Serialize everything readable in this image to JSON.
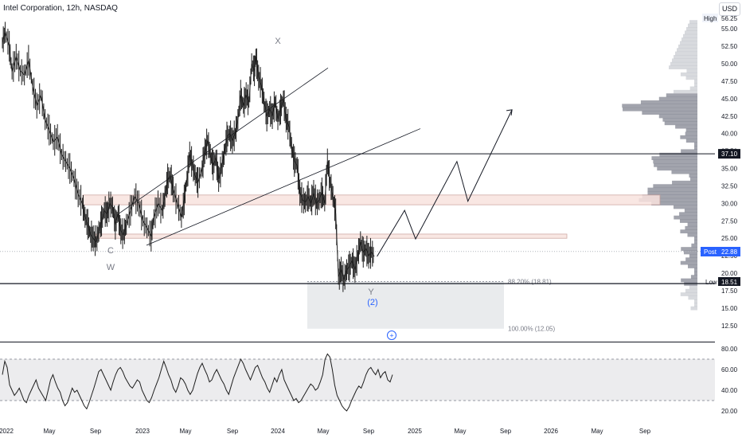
{
  "header": {
    "title": "Intel Corporation, 12h, NASDAQ",
    "currency": "USD"
  },
  "chart_data": [
    {
      "type": "line",
      "title": "Intel Corporation, 12h, NASDAQ",
      "ylim": [
        10.5,
        57.5
      ],
      "y_ticks": [
        "12.50",
        "15.00",
        "17.50",
        "20.00",
        "22.50",
        "25.00",
        "27.50",
        "30.00",
        "32.50",
        "35.00",
        "37.50",
        "40.00",
        "42.50",
        "45.00",
        "47.50",
        "50.00",
        "52.50",
        "55.00"
      ],
      "x_ticks": [
        "2022",
        "May",
        "Sep",
        "2023",
        "May",
        "Sep",
        "2024",
        "May",
        "Sep",
        "2025",
        "May",
        "Sep",
        "2026",
        "May",
        "Sep"
      ],
      "series": [
        {
          "values": [
            [
              0,
              53.0
            ],
            [
              0.02,
              54.5
            ],
            [
              0.05,
              52.5
            ],
            [
              0.07,
              48.9
            ],
            [
              0.1,
              51.0
            ],
            [
              0.13,
              49.0
            ],
            [
              0.16,
              48.4
            ],
            [
              0.19,
              50.5
            ],
            [
              0.22,
              46.7
            ],
            [
              0.25,
              44.0
            ],
            [
              0.28,
              45.5
            ],
            [
              0.31,
              42.0
            ],
            [
              0.34,
              40.5
            ],
            [
              0.37,
              38.8
            ],
            [
              0.4,
              39.5
            ],
            [
              0.43,
              37.0
            ],
            [
              0.46,
              36.0
            ],
            [
              0.49,
              35.0
            ],
            [
              0.52,
              33.5
            ],
            [
              0.55,
              31.3
            ],
            [
              0.58,
              30.0
            ],
            [
              0.6,
              28.0
            ],
            [
              0.62,
              27.0
            ],
            [
              0.64,
              25.5
            ],
            [
              0.66,
              25.0
            ],
            [
              0.68,
              24.5
            ],
            [
              0.7,
              26.0
            ],
            [
              0.72,
              27.5
            ],
            [
              0.74,
              29.0
            ],
            [
              0.76,
              28.5
            ],
            [
              0.78,
              30.0
            ],
            [
              0.8,
              29.5
            ],
            [
              0.82,
              27.0
            ],
            [
              0.84,
              28.5
            ],
            [
              0.86,
              26.0
            ],
            [
              0.88,
              25.5
            ],
            [
              0.9,
              27.0
            ],
            [
              0.93,
              29.0
            ],
            [
              0.96,
              31.0
            ],
            [
              0.99,
              30.0
            ],
            [
              1.02,
              27.5
            ],
            [
              1.05,
              26.5
            ],
            [
              1.08,
              25.3
            ],
            [
              1.1,
              28.0
            ],
            [
              1.13,
              30.0
            ],
            [
              1.16,
              29.0
            ],
            [
              1.18,
              31.0
            ],
            [
              1.2,
              33.5
            ],
            [
              1.22,
              34.0
            ],
            [
              1.24,
              32.0
            ],
            [
              1.27,
              30.0
            ],
            [
              1.3,
              28.0
            ],
            [
              1.32,
              30.5
            ],
            [
              1.34,
              33.5
            ],
            [
              1.36,
              37.0
            ],
            [
              1.38,
              35.5
            ],
            [
              1.4,
              34.0
            ],
            [
              1.42,
              33.0
            ],
            [
              1.45,
              35.0
            ],
            [
              1.47,
              37.5
            ],
            [
              1.49,
              39.0
            ],
            [
              1.51,
              37.0
            ],
            [
              1.53,
              35.5
            ],
            [
              1.55,
              36.5
            ],
            [
              1.57,
              33.5
            ],
            [
              1.59,
              35.0
            ],
            [
              1.61,
              37.0
            ],
            [
              1.63,
              39.5
            ],
            [
              1.65,
              40.0
            ],
            [
              1.67,
              39.0
            ],
            [
              1.69,
              40.0
            ],
            [
              1.71,
              42.0
            ],
            [
              1.73,
              45.5
            ],
            [
              1.75,
              44.0
            ],
            [
              1.77,
              45.5
            ],
            [
              1.79,
              44.5
            ],
            [
              1.81,
              50.0
            ],
            [
              1.83,
              49.0
            ],
            [
              1.84,
              51.0
            ],
            [
              1.86,
              48.0
            ],
            [
              1.88,
              47.0
            ],
            [
              1.9,
              44.5
            ],
            [
              1.92,
              42.5
            ],
            [
              1.94,
              43.5
            ],
            [
              1.96,
              42.5
            ],
            [
              1.98,
              44.5
            ],
            [
              2.0,
              42.0
            ],
            [
              2.02,
              43.5
            ],
            [
              2.04,
              45.0
            ],
            [
              2.06,
              42.0
            ],
            [
              2.08,
              41.0
            ],
            [
              2.1,
              38.0
            ],
            [
              2.12,
              36.0
            ],
            [
              2.14,
              35.5
            ],
            [
              2.16,
              31.5
            ],
            [
              2.18,
              30.5
            ],
            [
              2.2,
              30.2
            ],
            [
              2.22,
              31.0
            ],
            [
              2.24,
              30.0
            ],
            [
              2.26,
              31.5
            ],
            [
              2.28,
              30.0
            ],
            [
              2.3,
              30.5
            ],
            [
              2.32,
              31.5
            ],
            [
              2.34,
              30.0
            ],
            [
              2.36,
              36.0
            ],
            [
              2.38,
              33.0
            ],
            [
              2.4,
              31.0
            ],
            [
              2.42,
              28.5
            ],
            [
              2.44,
              19.5
            ],
            [
              2.46,
              20.5
            ],
            [
              2.48,
              19.0
            ],
            [
              2.5,
              20.5
            ],
            [
              2.52,
              21.0
            ],
            [
              2.54,
              21.8
            ],
            [
              2.56,
              20.5
            ],
            [
              2.58,
              22.5
            ],
            [
              2.6,
              24.5
            ],
            [
              2.62,
              23.0
            ],
            [
              2.64,
              23.5
            ],
            [
              2.66,
              22.5
            ],
            [
              2.68,
              23.0
            ],
            [
              2.7,
              22.4
            ]
          ]
        }
      ],
      "current_price": "22.88",
      "current_label": "Post",
      "high": {
        "label": "High",
        "value": "56.25"
      },
      "low": {
        "label": "Low",
        "value": "18.51"
      },
      "resistance": "37.10",
      "wave_labels": [
        "X",
        "C",
        "W",
        "Y",
        "(2)"
      ],
      "fib_levels": [
        {
          "label": "88.20% (18.81)",
          "value": 18.81
        },
        {
          "label": "100.00% (12.05)",
          "value": 12.05
        }
      ],
      "zones": [
        [
          29.8,
          31.2
        ],
        [
          25.0,
          25.6
        ]
      ],
      "projection": [
        [
          2.72,
          22.4
        ],
        [
          2.92,
          29.0
        ],
        [
          3.0,
          24.9
        ],
        [
          3.3,
          36.0
        ],
        [
          3.38,
          30.3
        ],
        [
          3.7,
          43.4
        ]
      ]
    },
    {
      "type": "line",
      "title": "",
      "ylim": [
        16,
        84
      ],
      "y_ticks": [
        "20.00",
        "40.00",
        "60.00",
        "80.00"
      ],
      "bands": [
        30,
        70
      ],
      "series": [
        {
          "values": [
            55,
            68,
            62,
            45,
            40,
            35,
            38,
            42,
            36,
            30,
            28,
            35,
            40,
            45,
            50,
            42,
            38,
            34,
            30,
            40,
            50,
            55,
            48,
            42,
            38,
            30,
            25,
            28,
            35,
            42,
            38,
            40,
            35,
            30,
            25,
            22,
            28,
            35,
            42,
            50,
            58,
            60,
            55,
            50,
            45,
            40,
            48,
            55,
            60,
            62,
            58,
            52,
            48,
            44,
            42,
            46,
            50,
            48,
            40,
            35,
            30,
            28,
            33,
            40,
            46,
            52,
            60,
            68,
            62,
            55,
            50,
            42,
            38,
            44,
            52,
            50,
            46,
            40,
            36,
            40,
            48,
            56,
            62,
            66,
            60,
            55,
            48,
            50,
            56,
            60,
            55,
            50,
            46,
            40,
            36,
            44,
            52,
            58,
            64,
            70,
            66,
            60,
            55,
            50,
            56,
            62,
            64,
            58,
            52,
            48,
            42,
            38,
            45,
            52,
            48,
            55,
            60,
            50,
            45,
            40,
            35,
            30,
            32,
            28,
            30,
            34,
            38,
            42,
            46,
            44,
            40,
            42,
            48,
            55,
            70,
            75,
            72,
            60,
            45,
            35,
            30,
            25,
            22,
            20,
            24,
            30,
            35,
            40,
            44,
            42,
            48,
            55,
            60,
            62,
            58,
            55,
            60,
            52,
            56,
            58,
            50,
            48,
            55
          ]
        }
      ]
    }
  ],
  "ui": {
    "add_button": "+"
  },
  "colors": {
    "candle": "#1e1e1e",
    "zone_fill": "#f9e3df",
    "zone_stroke": "#c69c96",
    "volume": "#b2b5be",
    "volume_dark": "#7a7e8a",
    "fib_box": "#e4e6e9",
    "accent": "#2962ff",
    "rsi_fill": "#ececee"
  }
}
